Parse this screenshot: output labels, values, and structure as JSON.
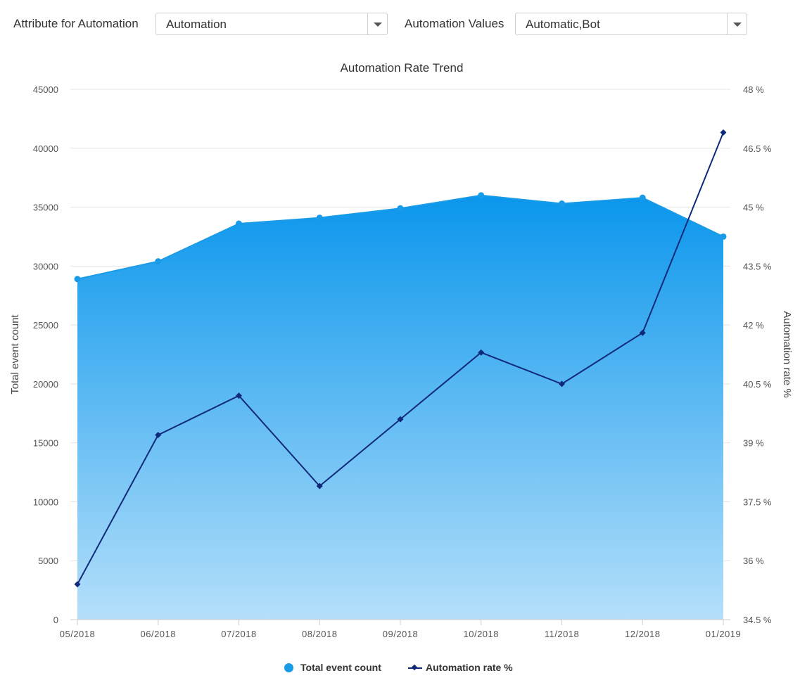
{
  "filters": {
    "attribute_label": "Attribute for Automation",
    "attribute_value": "Automation",
    "values_label": "Automation Values",
    "values_value": "Automatic,Bot"
  },
  "chart_data": {
    "type": "area",
    "title": "Automation Rate Trend",
    "categories": [
      "05/2018",
      "06/2018",
      "07/2018",
      "08/2018",
      "09/2018",
      "10/2018",
      "11/2018",
      "12/2018",
      "01/2019"
    ],
    "series": [
      {
        "name": "Total event count",
        "type": "area",
        "axis": "left",
        "color": "#1a9be8",
        "values": [
          28900,
          30400,
          33600,
          34100,
          34900,
          36000,
          35300,
          35800,
          32500
        ]
      },
      {
        "name": "Automation rate %",
        "type": "line",
        "axis": "right",
        "color": "#0f2a7a",
        "values": [
          35.4,
          39.2,
          40.2,
          37.9,
          39.6,
          41.3,
          40.5,
          41.8,
          46.9
        ]
      }
    ],
    "y_left": {
      "label": "Total event count",
      "range": [
        0,
        45000
      ],
      "ticks": [
        "0",
        "5000",
        "10000",
        "15000",
        "20000",
        "25000",
        "30000",
        "35000",
        "40000",
        "45000"
      ]
    },
    "y_right": {
      "label": "Automation rate %",
      "range": [
        34.5,
        48
      ],
      "ticks": [
        "34.5 %",
        "36 %",
        "37.5 %",
        "39 %",
        "40.5 %",
        "42 %",
        "43.5 %",
        "45 %",
        "46.5 %",
        "48 %"
      ]
    },
    "grid": true,
    "legend_position": "bottom-center"
  }
}
